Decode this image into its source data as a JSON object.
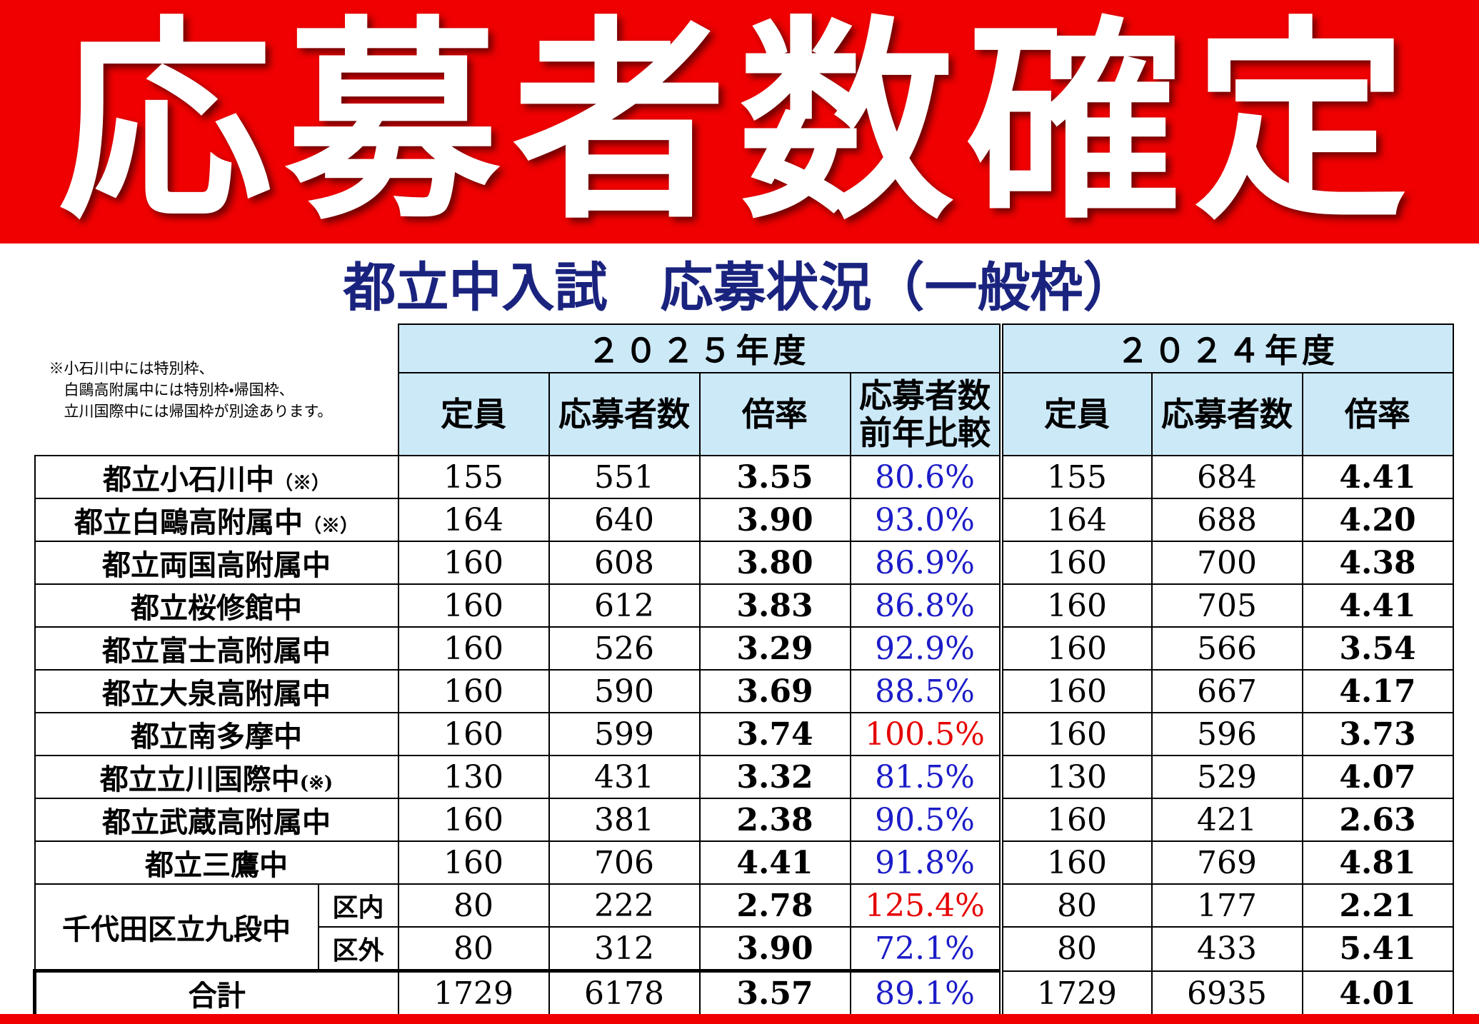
{
  "banner": {
    "title": "応募者数確定"
  },
  "subtitle": "都立中入試　応募状況（一般枠）",
  "note": [
    "※小石川中には特別枠、",
    "　白鷗高附属中には特別枠・帰国枠、",
    "　立川国際中には帰国枠が別途あります。"
  ],
  "table": {
    "years": [
      "２０２５年度",
      "２０２４年度"
    ],
    "headers_2025": [
      [
        "定員"
      ],
      [
        "応募者数"
      ],
      [
        "倍率"
      ],
      [
        "応募者数",
        "前年比較"
      ]
    ],
    "headers_2024": [
      [
        "定員"
      ],
      [
        "応募者数"
      ],
      [
        "倍率"
      ]
    ],
    "rows": [
      {
        "school": "都立小石川中",
        "mark": "（※）",
        "values": [
          "155",
          "551",
          "3.55",
          "80.6%",
          "155",
          "684",
          "4.41"
        ]
      },
      {
        "school": "都立白鷗高附属中",
        "mark": "（※）",
        "values": [
          "164",
          "640",
          "3.90",
          "93.0%",
          "164",
          "688",
          "4.20"
        ]
      },
      {
        "school": "都立両国高附属中",
        "values": [
          "160",
          "608",
          "3.80",
          "86.9%",
          "160",
          "700",
          "4.38"
        ]
      },
      {
        "school": "都立桜修館中",
        "values": [
          "160",
          "612",
          "3.83",
          "86.8%",
          "160",
          "705",
          "4.41"
        ]
      },
      {
        "school": "都立富士高附属中",
        "values": [
          "160",
          "526",
          "3.29",
          "92.9%",
          "160",
          "566",
          "3.54"
        ]
      },
      {
        "school": "都立大泉高附属中",
        "values": [
          "160",
          "590",
          "3.69",
          "88.5%",
          "160",
          "667",
          "4.17"
        ]
      },
      {
        "school": "都立南多摩中",
        "values": [
          "160",
          "599",
          "3.74",
          "100.5%",
          "160",
          "596",
          "3.73"
        ]
      },
      {
        "school": "都立立川国際中",
        "mark": "(※)",
        "values": [
          "130",
          "431",
          "3.32",
          "81.5%",
          "130",
          "529",
          "4.07"
        ]
      },
      {
        "school": "都立武蔵高附属中",
        "values": [
          "160",
          "381",
          "2.38",
          "90.5%",
          "160",
          "421",
          "2.63"
        ]
      },
      {
        "school": "都立三鷹中",
        "values": [
          "160",
          "706",
          "4.41",
          "91.8%",
          "160",
          "769",
          "4.81"
        ]
      },
      {
        "school": "千代田区立九段中",
        "parts": [
          {
            "label": "区内",
            "values": [
              "80",
              "222",
              "2.78",
              "125.4%",
              "80",
              "177",
              "2.21"
            ]
          },
          {
            "label": "区外",
            "values": [
              "80",
              "312",
              "3.90",
              "72.1%",
              "80",
              "433",
              "5.41"
            ]
          }
        ]
      }
    ],
    "total": {
      "label": "合計",
      "values": [
        "1729",
        "6178",
        "3.57",
        "89.1%",
        "1729",
        "6935",
        "4.01"
      ]
    }
  }
}
